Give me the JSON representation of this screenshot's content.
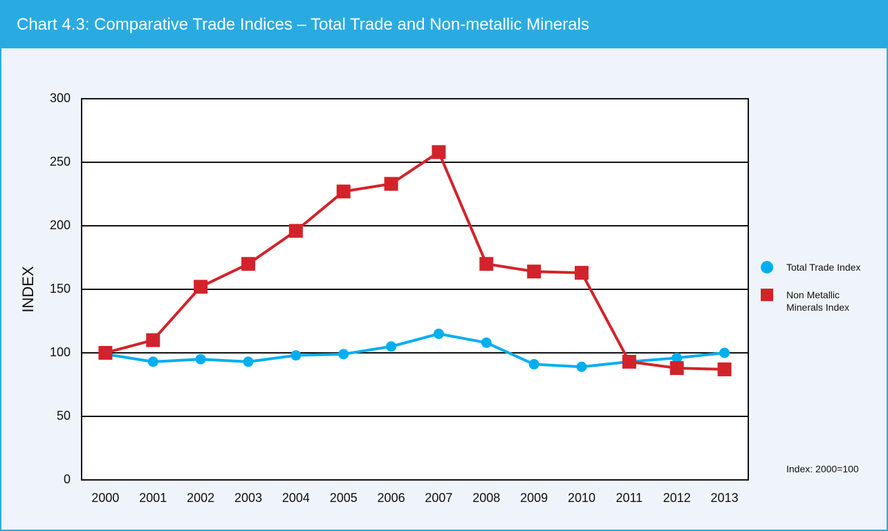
{
  "chart_data": {
    "type": "line",
    "title": "Chart 4.3: Comparative Trade Indices – Total Trade and Non-metallic Minerals",
    "y_label": "INDEX",
    "note": "Index: 2000=100",
    "categories": [
      "2000",
      "2001",
      "2002",
      "2003",
      "2004",
      "2005",
      "2006",
      "2007",
      "2008",
      "2009",
      "2010",
      "2011",
      "2012",
      "2013"
    ],
    "series": [
      {
        "name": "Total Trade Index",
        "color": "#00aeef",
        "marker": "circle",
        "values": [
          99,
          93,
          95,
          93,
          98,
          99,
          105,
          115,
          108,
          91,
          89,
          93,
          96,
          100
        ]
      },
      {
        "name": "Non Metallic Minerals Index",
        "color": "#d2232a",
        "marker": "square",
        "values": [
          100,
          110,
          152,
          170,
          196,
          227,
          233,
          258,
          170,
          164,
          163,
          93,
          88,
          87
        ]
      }
    ],
    "ylim": [
      0,
      300
    ],
    "yticks": [
      0,
      50,
      100,
      150,
      200,
      250,
      300
    ],
    "grid": true
  }
}
